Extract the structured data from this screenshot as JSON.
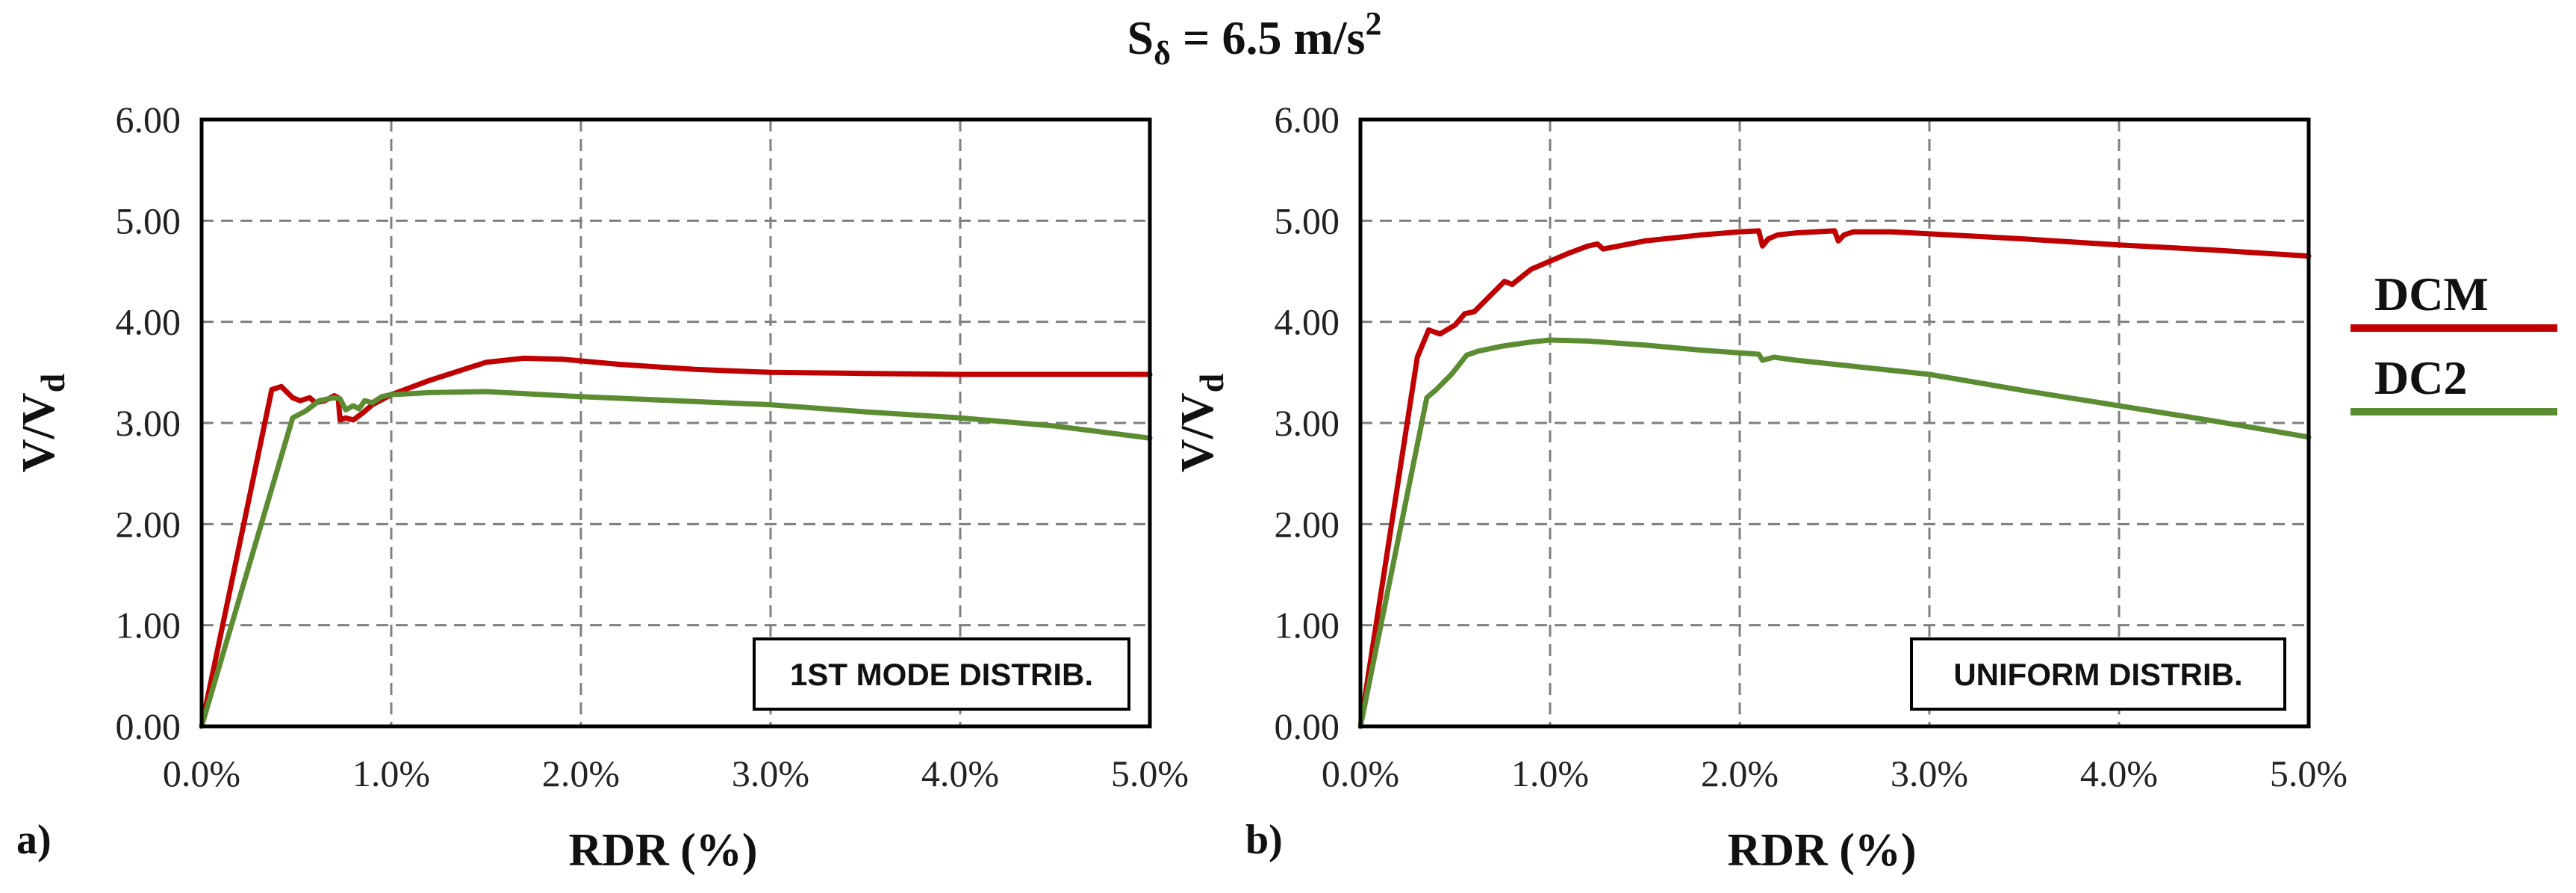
{
  "figure": {
    "title_main": "S",
    "title_sub": "δ",
    "title_rest": " = 6.5 m/s",
    "title_sup": "2"
  },
  "colors": {
    "DCM": "#c00000",
    "DC2": "#5b8c32"
  },
  "legend": [
    {
      "key": "DCM",
      "label": "DCM"
    },
    {
      "key": "DC2",
      "label": "DC2"
    }
  ],
  "chart_data": [
    {
      "type": "line",
      "panel_label": "a)",
      "box_label": "1ST MODE DISTRIB.",
      "xlabel": "RDR (%)",
      "ylabel_main": "V/V",
      "ylabel_sub": "d",
      "xlim": [
        0,
        5
      ],
      "ylim": [
        0,
        6
      ],
      "grid": true,
      "x_ticks": [
        "0.0%",
        "1.0%",
        "2.0%",
        "3.0%",
        "4.0%",
        "5.0%"
      ],
      "y_ticks": [
        "0.00",
        "1.00",
        "2.00",
        "3.00",
        "4.00",
        "5.00",
        "6.00"
      ],
      "series": [
        {
          "name": "DCM",
          "x": [
            0,
            0.37,
            0.42,
            0.48,
            0.52,
            0.57,
            0.6,
            0.65,
            0.7,
            0.72,
            0.73,
            0.76,
            0.8,
            0.85,
            0.9,
            1.0,
            1.2,
            1.5,
            1.7,
            1.9,
            2.2,
            2.6,
            3.0,
            3.5,
            4.0,
            4.5,
            5.0
          ],
          "y": [
            0,
            3.33,
            3.36,
            3.25,
            3.22,
            3.25,
            3.2,
            3.22,
            3.27,
            3.25,
            3.03,
            3.05,
            3.03,
            3.1,
            3.18,
            3.28,
            3.42,
            3.6,
            3.64,
            3.63,
            3.58,
            3.53,
            3.5,
            3.49,
            3.48,
            3.48,
            3.48
          ]
        },
        {
          "name": "DC2",
          "x": [
            0,
            0.48,
            0.55,
            0.62,
            0.7,
            0.73,
            0.76,
            0.8,
            0.83,
            0.86,
            0.9,
            0.95,
            1.0,
            1.2,
            1.5,
            2.0,
            2.5,
            3.0,
            3.5,
            4.0,
            4.5,
            5.0
          ],
          "y": [
            0,
            3.05,
            3.12,
            3.22,
            3.25,
            3.24,
            3.13,
            3.17,
            3.14,
            3.22,
            3.2,
            3.26,
            3.28,
            3.3,
            3.31,
            3.26,
            3.22,
            3.18,
            3.11,
            3.05,
            2.97,
            2.85
          ]
        }
      ]
    },
    {
      "type": "line",
      "panel_label": "b)",
      "box_label": "UNIFORM DISTRIB.",
      "xlabel": "RDR (%)",
      "ylabel_main": "V/V",
      "ylabel_sub": "d",
      "xlim": [
        0,
        5
      ],
      "ylim": [
        0,
        6
      ],
      "grid": true,
      "x_ticks": [
        "0.0%",
        "1.0%",
        "2.0%",
        "3.0%",
        "4.0%",
        "5.0%"
      ],
      "y_ticks": [
        "0.00",
        "1.00",
        "2.00",
        "3.00",
        "4.00",
        "5.00",
        "6.00"
      ],
      "series": [
        {
          "name": "DCM",
          "x": [
            0,
            0.3,
            0.36,
            0.42,
            0.5,
            0.55,
            0.6,
            0.68,
            0.76,
            0.8,
            0.9,
            1.0,
            1.1,
            1.2,
            1.25,
            1.28,
            1.5,
            1.8,
            2.0,
            2.1,
            2.12,
            2.15,
            2.2,
            2.3,
            2.4,
            2.5,
            2.52,
            2.55,
            2.6,
            2.8,
            3.0,
            3.5,
            4.0,
            4.5,
            5.0
          ],
          "y": [
            0,
            3.65,
            3.92,
            3.88,
            3.97,
            4.08,
            4.1,
            4.25,
            4.4,
            4.37,
            4.52,
            4.6,
            4.68,
            4.75,
            4.77,
            4.72,
            4.8,
            4.86,
            4.89,
            4.9,
            4.75,
            4.82,
            4.86,
            4.88,
            4.89,
            4.9,
            4.8,
            4.86,
            4.89,
            4.89,
            4.87,
            4.82,
            4.76,
            4.71,
            4.65
          ]
        },
        {
          "name": "DC2",
          "x": [
            0,
            0.35,
            0.4,
            0.48,
            0.56,
            0.62,
            0.75,
            0.9,
            1.0,
            1.2,
            1.5,
            1.8,
            2.1,
            2.12,
            2.18,
            2.3,
            2.5,
            3.0,
            3.5,
            4.0,
            4.5,
            5.0
          ],
          "y": [
            0,
            3.25,
            3.33,
            3.48,
            3.67,
            3.71,
            3.76,
            3.8,
            3.82,
            3.81,
            3.77,
            3.72,
            3.68,
            3.62,
            3.65,
            3.62,
            3.58,
            3.48,
            3.32,
            3.17,
            3.02,
            2.86
          ]
        }
      ]
    }
  ]
}
